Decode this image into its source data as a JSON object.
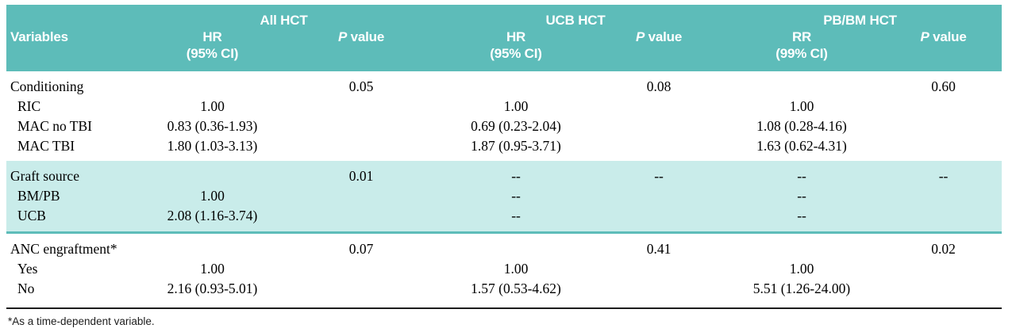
{
  "colors": {
    "header_teal": "#5dbcb9",
    "band_teal": "#c9ecea",
    "rule_black": "#1c1c1c",
    "header_text": "#ffffff",
    "body_text": "#000000"
  },
  "header": {
    "variables_label": "Variables",
    "groups": [
      "All HCT",
      "UCB HCT",
      "PB/BM HCT"
    ],
    "subcols": [
      {
        "top": "HR",
        "bottom": "(95% CI)"
      },
      {
        "p": "P",
        "rest": " value"
      },
      {
        "top": "HR",
        "bottom": "(95% CI)"
      },
      {
        "p": "P",
        "rest": " value"
      },
      {
        "top": "RR",
        "bottom": "(99% CI)"
      },
      {
        "p": "P",
        "rest": " value"
      }
    ]
  },
  "rows": [
    {
      "label": "Conditioning",
      "sub": false,
      "section": "conditioning",
      "classes": "section-start",
      "cells": [
        "",
        "0.05",
        "",
        "0.08",
        "",
        "0.60"
      ]
    },
    {
      "label": "RIC",
      "sub": true,
      "section": "conditioning",
      "classes": "",
      "cells": [
        "1.00",
        "",
        "1.00",
        "",
        "1.00",
        ""
      ]
    },
    {
      "label": "MAC no TBI",
      "sub": true,
      "section": "conditioning",
      "classes": "",
      "cells": [
        "0.83 (0.36-1.93)",
        "",
        "0.69 (0.23-2.04)",
        "",
        "1.08 (0.28-4.16)",
        ""
      ]
    },
    {
      "label": "MAC TBI",
      "sub": true,
      "section": "conditioning",
      "classes": "sect1-end",
      "cells": [
        "1.80 (1.03-3.13)",
        "",
        "1.87 (0.95-3.71)",
        "",
        "1.63 (0.62-4.31)",
        ""
      ]
    },
    {
      "label": "Graft source",
      "sub": false,
      "section": "graft-source",
      "classes": "band section-start",
      "cells": [
        "",
        "0.01",
        "--",
        "--",
        "--",
        "--"
      ]
    },
    {
      "label": "BM/PB",
      "sub": true,
      "section": "graft-source",
      "classes": "band",
      "cells": [
        "1.00",
        "",
        "--",
        "",
        "--",
        ""
      ]
    },
    {
      "label": "UCB",
      "sub": true,
      "section": "graft-source",
      "classes": "band band-end",
      "cells": [
        "2.08 (1.16-3.74)",
        "",
        "--",
        "",
        "--",
        ""
      ]
    },
    {
      "label": "ANC engraftment*",
      "sub": false,
      "section": "anc",
      "classes": "section-start",
      "cells": [
        "",
        "0.07",
        "",
        "0.41",
        "",
        "0.02"
      ]
    },
    {
      "label": "Yes",
      "sub": true,
      "section": "anc",
      "classes": "",
      "cells": [
        "1.00",
        "",
        "1.00",
        "",
        "1.00",
        ""
      ]
    },
    {
      "label": "No",
      "sub": true,
      "section": "anc",
      "classes": "table-end",
      "cells": [
        "2.16 (0.93-5.01)",
        "",
        "1.57 (0.53-4.62)",
        "",
        "5.51 (1.26-24.00)",
        ""
      ]
    }
  ],
  "footnote": "*As a time-dependent variable."
}
